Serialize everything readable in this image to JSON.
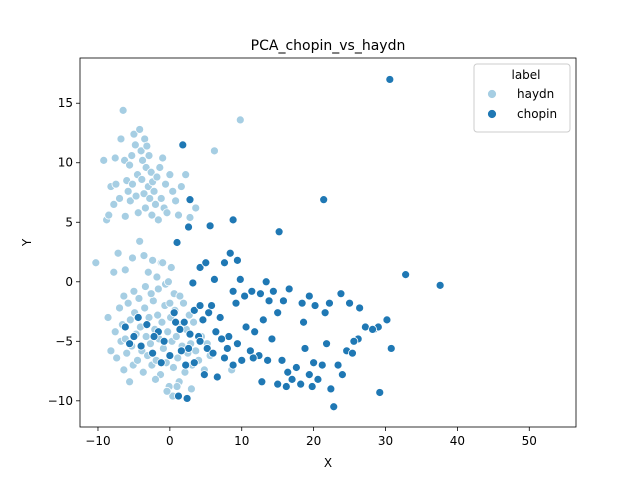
{
  "chart_data": {
    "type": "scatter",
    "title": "PCA_chopin_vs_haydn",
    "xlabel": "X",
    "ylabel": "Y",
    "xlim": [
      -12.5,
      56.5
    ],
    "ylim": [
      -12.2,
      18.8
    ],
    "xticks": [
      -10,
      0,
      10,
      20,
      30,
      40,
      50
    ],
    "yticks": [
      -10,
      -5,
      0,
      5,
      10,
      15
    ],
    "grid": false,
    "legend": {
      "title": "label",
      "position": "top-right"
    },
    "series": [
      {
        "name": "haydn",
        "color": "#a6cee3",
        "points": [
          [
            -10.3,
            1.6
          ],
          [
            -9.2,
            10.2
          ],
          [
            -8.8,
            5.2
          ],
          [
            -8.5,
            5.6
          ],
          [
            -8.2,
            8.0
          ],
          [
            -7.8,
            6.5
          ],
          [
            -7.6,
            10.4
          ],
          [
            -7.5,
            8.2
          ],
          [
            -7.2,
            2.4
          ],
          [
            -7.0,
            7.0
          ],
          [
            -6.8,
            12.0
          ],
          [
            -6.5,
            14.4
          ],
          [
            -6.3,
            10.2
          ],
          [
            -6.2,
            5.5
          ],
          [
            -6.0,
            8.5
          ],
          [
            -5.8,
            7.6
          ],
          [
            -5.6,
            9.8
          ],
          [
            -5.5,
            6.8
          ],
          [
            -5.3,
            10.6
          ],
          [
            -5.2,
            8.2
          ],
          [
            -5.0,
            12.4
          ],
          [
            -4.8,
            11.5
          ],
          [
            -4.7,
            7.2
          ],
          [
            -4.5,
            9.0
          ],
          [
            -4.4,
            5.8
          ],
          [
            -4.2,
            12.8
          ],
          [
            -4.0,
            11.0
          ],
          [
            -3.9,
            8.6
          ],
          [
            -3.8,
            10.2
          ],
          [
            -3.6,
            7.4
          ],
          [
            -3.5,
            12.0
          ],
          [
            -3.4,
            6.2
          ],
          [
            -3.3,
            9.6
          ],
          [
            -3.2,
            11.4
          ],
          [
            -3.0,
            8.0
          ],
          [
            -2.9,
            10.6
          ],
          [
            -2.8,
            7.0
          ],
          [
            -2.6,
            9.2
          ],
          [
            -2.5,
            5.6
          ],
          [
            -2.4,
            8.4
          ],
          [
            -2.2,
            7.6
          ],
          [
            -2.0,
            6.5
          ],
          [
            -1.8,
            8.8
          ],
          [
            -1.6,
            5.2
          ],
          [
            -1.4,
            9.6
          ],
          [
            -1.2,
            7.0
          ],
          [
            -1.0,
            10.4
          ],
          [
            -0.8,
            6.2
          ],
          [
            -0.6,
            8.2
          ],
          [
            -0.4,
            5.8
          ],
          [
            0.0,
            9.0
          ],
          [
            0.4,
            7.6
          ],
          [
            0.8,
            6.8
          ],
          [
            1.2,
            5.6
          ],
          [
            1.6,
            8.0
          ],
          [
            2.2,
            9.0
          ],
          [
            2.8,
            5.4
          ],
          [
            3.6,
            6.2
          ],
          [
            6.2,
            11.0
          ],
          [
            9.8,
            13.6
          ],
          [
            -7.8,
            0.8
          ],
          [
            -6.2,
            1.0
          ],
          [
            -5.2,
            2.0
          ],
          [
            -4.2,
            3.4
          ],
          [
            -3.6,
            2.2
          ],
          [
            -3.0,
            0.8
          ],
          [
            -2.4,
            1.8
          ],
          [
            -1.8,
            0.4
          ],
          [
            -1.2,
            1.6
          ],
          [
            -0.6,
            -0.2
          ],
          [
            0.2,
            1.2
          ],
          [
            -8.6,
            -3.0
          ],
          [
            -8.2,
            -5.8
          ],
          [
            -7.6,
            -4.2
          ],
          [
            -7.4,
            -6.4
          ],
          [
            -7.0,
            -2.2
          ],
          [
            -6.8,
            -5.0
          ],
          [
            -6.6,
            -3.6
          ],
          [
            -6.4,
            -7.4
          ],
          [
            -6.2,
            -4.8
          ],
          [
            -6.0,
            -6.0
          ],
          [
            -5.8,
            -1.8
          ],
          [
            -5.6,
            -8.4
          ],
          [
            -5.5,
            -3.2
          ],
          [
            -5.3,
            -5.4
          ],
          [
            -5.1,
            -7.0
          ],
          [
            -4.9,
            -2.6
          ],
          [
            -4.7,
            -4.4
          ],
          [
            -4.5,
            -6.6
          ],
          [
            -4.3,
            -1.4
          ],
          [
            -4.1,
            -3.8
          ],
          [
            -3.9,
            -5.8
          ],
          [
            -3.7,
            -7.6
          ],
          [
            -3.5,
            -2.2
          ],
          [
            -3.3,
            -4.6
          ],
          [
            -3.1,
            -6.2
          ],
          [
            -2.9,
            -3.0
          ],
          [
            -2.7,
            -5.2
          ],
          [
            -2.5,
            -7.0
          ],
          [
            -2.3,
            -1.6
          ],
          [
            -2.1,
            -4.0
          ],
          [
            -1.9,
            -6.6
          ],
          [
            -1.7,
            -2.8
          ],
          [
            -1.5,
            -4.8
          ],
          [
            -1.3,
            -7.8
          ],
          [
            -1.1,
            -3.4
          ],
          [
            -0.9,
            -5.6
          ],
          [
            -0.7,
            -2.0
          ],
          [
            -0.5,
            -6.8
          ],
          [
            -0.3,
            -4.2
          ],
          [
            -0.1,
            -8.8
          ],
          [
            0.1,
            -3.0
          ],
          [
            0.3,
            -5.0
          ],
          [
            0.5,
            -7.2
          ],
          [
            0.7,
            -2.4
          ],
          [
            0.9,
            -4.6
          ],
          [
            1.1,
            -6.4
          ],
          [
            1.3,
            -8.4
          ],
          [
            1.5,
            -3.6
          ],
          [
            1.7,
            -5.4
          ],
          [
            1.9,
            -1.8
          ],
          [
            2.1,
            -7.6
          ],
          [
            2.3,
            -4.0
          ],
          [
            2.5,
            -6.0
          ],
          [
            2.7,
            -2.8
          ],
          [
            2.9,
            -5.2
          ],
          [
            3.1,
            -7.0
          ],
          [
            3.3,
            -3.4
          ],
          [
            3.6,
            -5.8
          ],
          [
            4.0,
            -6.6
          ],
          [
            4.4,
            -4.6
          ],
          [
            4.8,
            -7.4
          ],
          [
            5.2,
            -5.2
          ],
          [
            5.6,
            -6.2
          ],
          [
            0.4,
            -9.6
          ],
          [
            -0.4,
            -9.2
          ],
          [
            1.0,
            -8.8
          ],
          [
            -2.0,
            -8.2
          ],
          [
            3.0,
            -9.0
          ],
          [
            8.6,
            -7.4
          ],
          [
            -1.0,
            1.6
          ],
          [
            -0.2,
            0.0
          ],
          [
            0.6,
            -1.0
          ],
          [
            -1.6,
            -0.6
          ],
          [
            -2.6,
            -1.0
          ],
          [
            -3.4,
            -0.4
          ],
          [
            -5.0,
            -0.8
          ],
          [
            -6.4,
            -1.2
          ],
          [
            0.0,
            -1.8
          ],
          [
            1.4,
            -1.2
          ]
        ]
      },
      {
        "name": "chopin",
        "color": "#1f78b4",
        "points": [
          [
            30.6,
            17.0
          ],
          [
            21.4,
            6.9
          ],
          [
            1.8,
            11.5
          ],
          [
            2.8,
            6.9
          ],
          [
            1.0,
            3.3
          ],
          [
            2.6,
            4.6
          ],
          [
            5.6,
            4.7
          ],
          [
            8.8,
            5.2
          ],
          [
            15.2,
            4.2
          ],
          [
            3.2,
            -0.1
          ],
          [
            4.2,
            1.2
          ],
          [
            5.0,
            1.6
          ],
          [
            6.2,
            0.2
          ],
          [
            7.6,
            1.6
          ],
          [
            8.4,
            2.4
          ],
          [
            9.4,
            1.8
          ],
          [
            9.8,
            0.2
          ],
          [
            8.8,
            -0.8
          ],
          [
            9.2,
            -1.8
          ],
          [
            10.4,
            -1.2
          ],
          [
            11.4,
            -0.8
          ],
          [
            12.6,
            -1.0
          ],
          [
            13.4,
            0.0
          ],
          [
            13.8,
            -1.6
          ],
          [
            14.4,
            -0.8
          ],
          [
            15.0,
            -2.6
          ],
          [
            15.8,
            -1.6
          ],
          [
            16.6,
            -0.6
          ],
          [
            18.4,
            -1.8
          ],
          [
            18.6,
            -3.4
          ],
          [
            19.4,
            -1.2
          ],
          [
            20.2,
            -2.0
          ],
          [
            21.6,
            -2.6
          ],
          [
            22.2,
            -1.8
          ],
          [
            23.8,
            -1.0
          ],
          [
            25.0,
            -1.8
          ],
          [
            26.4,
            -2.2
          ],
          [
            27.2,
            -3.8
          ],
          [
            28.4,
            -4.0
          ],
          [
            29.0,
            -3.8
          ],
          [
            30.2,
            -3.2
          ],
          [
            30.8,
            -5.6
          ],
          [
            32.8,
            0.6
          ],
          [
            37.6,
            -0.3
          ],
          [
            0.6,
            -2.6
          ],
          [
            1.4,
            -4.0
          ],
          [
            2.0,
            -3.4
          ],
          [
            2.6,
            -5.6
          ],
          [
            3.4,
            -2.4
          ],
          [
            4.0,
            -4.6
          ],
          [
            4.6,
            -3.2
          ],
          [
            5.2,
            -5.6
          ],
          [
            5.8,
            -2.0
          ],
          [
            6.4,
            -4.2
          ],
          [
            7.0,
            -3.0
          ],
          [
            7.6,
            -6.4
          ],
          [
            8.2,
            -4.6
          ],
          [
            8.8,
            -7.0
          ],
          [
            9.4,
            -5.2
          ],
          [
            10.0,
            -6.6
          ],
          [
            10.6,
            -3.8
          ],
          [
            11.2,
            -5.8
          ],
          [
            11.8,
            -4.2
          ],
          [
            12.4,
            -6.2
          ],
          [
            13.0,
            -3.2
          ],
          [
            13.6,
            -6.6
          ],
          [
            14.2,
            -4.8
          ],
          [
            15.0,
            -8.6
          ],
          [
            15.6,
            -6.6
          ],
          [
            16.4,
            -7.6
          ],
          [
            17.0,
            -8.2
          ],
          [
            17.6,
            -7.2
          ],
          [
            18.2,
            -8.6
          ],
          [
            18.8,
            -5.6
          ],
          [
            19.4,
            -7.8
          ],
          [
            20.0,
            -6.8
          ],
          [
            20.6,
            -8.2
          ],
          [
            21.2,
            -7.0
          ],
          [
            21.8,
            -5.2
          ],
          [
            22.4,
            -9.0
          ],
          [
            22.8,
            -10.5
          ],
          [
            23.4,
            -7.0
          ],
          [
            24.0,
            -7.8
          ],
          [
            24.6,
            -5.8
          ],
          [
            25.4,
            -6.0
          ],
          [
            26.2,
            -4.8
          ],
          [
            29.2,
            -9.3
          ],
          [
            -6.2,
            -3.8
          ],
          [
            -5.0,
            -4.6
          ],
          [
            -4.0,
            -5.4
          ],
          [
            -3.2,
            -3.6
          ],
          [
            -2.4,
            -6.0
          ],
          [
            -1.6,
            -4.2
          ],
          [
            -0.8,
            -5.0
          ],
          [
            0.0,
            -6.2
          ],
          [
            0.8,
            -3.4
          ],
          [
            1.6,
            -5.8
          ],
          [
            2.2,
            -7.0
          ],
          [
            2.8,
            -4.4
          ],
          [
            3.4,
            -6.8
          ],
          [
            4.2,
            -5.0
          ],
          [
            4.8,
            -7.8
          ],
          [
            6.0,
            -6.0
          ],
          [
            6.6,
            -8.0
          ],
          [
            1.2,
            -9.6
          ],
          [
            2.4,
            -9.8
          ],
          [
            -1.2,
            -6.8
          ],
          [
            -2.2,
            -4.6
          ],
          [
            -4.4,
            -3.0
          ],
          [
            -5.6,
            -5.2
          ],
          [
            7.2,
            -4.8
          ],
          [
            8.0,
            -5.6
          ],
          [
            11.6,
            -6.4
          ],
          [
            12.8,
            -8.4
          ],
          [
            16.2,
            -8.8
          ],
          [
            19.8,
            -8.8
          ],
          [
            25.6,
            -5.0
          ],
          [
            28.2,
            -4.0
          ],
          [
            4.2,
            -2.0
          ],
          [
            5.4,
            -2.6
          ]
        ]
      }
    ]
  }
}
